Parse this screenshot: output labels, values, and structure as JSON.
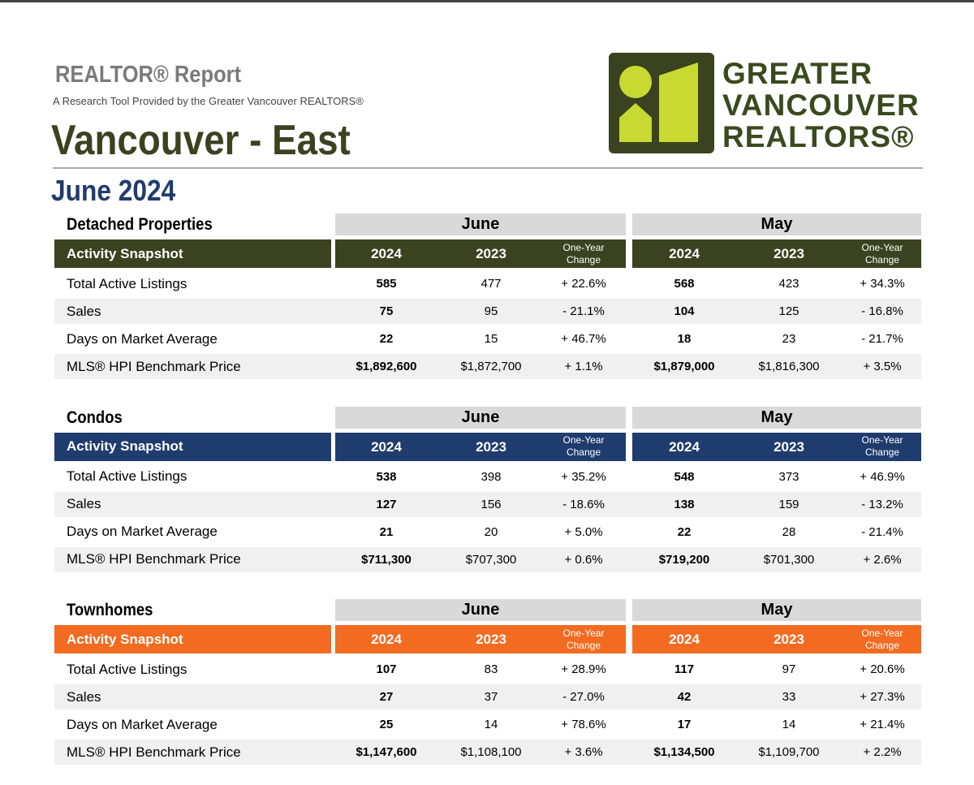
{
  "header": {
    "report_title": "REALTOR® Report",
    "subtitle": "A Research Tool Provided by the Greater Vancouver REALTORS®",
    "area": "Vancouver - East",
    "period": "June 2024",
    "logo_text": [
      "GREATER",
      "VANCOUVER",
      "REALTORS®"
    ]
  },
  "sections": [
    {
      "title": "Detached Properties",
      "snapshot": "Activity Snapshot",
      "color": "#3a4220",
      "groups": [
        {
          "name": "June",
          "columns": [
            "2024",
            "2023",
            "One-Year Change"
          ]
        },
        {
          "name": "May",
          "columns": [
            "2024",
            "2023",
            "One-Year Change"
          ]
        }
      ],
      "rows": [
        {
          "label": "Total Active Listings",
          "cells": [
            "585",
            "477",
            "+ 22.6%",
            "568",
            "423",
            "+ 34.3%"
          ]
        },
        {
          "label": "Sales",
          "cells": [
            "75",
            "95",
            "- 21.1%",
            "104",
            "125",
            "- 16.8%"
          ]
        },
        {
          "label": "Days on Market Average",
          "cells": [
            "22",
            "15",
            "+ 46.7%",
            "18",
            "23",
            "- 21.7%"
          ]
        },
        {
          "label": "MLS® HPI Benchmark Price",
          "cells": [
            "$1,892,600",
            "$1,872,700",
            "+ 1.1%",
            "$1,879,000",
            "$1,816,300",
            "+ 3.5%"
          ]
        }
      ]
    },
    {
      "title": "Condos",
      "snapshot": "Activity Snapshot",
      "color": "#1f3c6e",
      "groups": [
        {
          "name": "June",
          "columns": [
            "2024",
            "2023",
            "One-Year Change"
          ]
        },
        {
          "name": "May",
          "columns": [
            "2024",
            "2023",
            "One-Year Change"
          ]
        }
      ],
      "rows": [
        {
          "label": "Total Active Listings",
          "cells": [
            "538",
            "398",
            "+ 35.2%",
            "548",
            "373",
            "+ 46.9%"
          ]
        },
        {
          "label": "Sales",
          "cells": [
            "127",
            "156",
            "- 18.6%",
            "138",
            "159",
            "- 13.2%"
          ]
        },
        {
          "label": "Days on Market Average",
          "cells": [
            "21",
            "20",
            "+ 5.0%",
            "22",
            "28",
            "- 21.4%"
          ]
        },
        {
          "label": "MLS® HPI Benchmark Price",
          "cells": [
            "$711,300",
            "$707,300",
            "+ 0.6%",
            "$719,200",
            "$701,300",
            "+ 2.6%"
          ]
        }
      ]
    },
    {
      "title": "Townhomes",
      "snapshot": "Activity Snapshot",
      "color": "#f26b21",
      "groups": [
        {
          "name": "June",
          "columns": [
            "2024",
            "2023",
            "One-Year Change"
          ]
        },
        {
          "name": "May",
          "columns": [
            "2024",
            "2023",
            "One-Year Change"
          ]
        }
      ],
      "rows": [
        {
          "label": "Total Active Listings",
          "cells": [
            "107",
            "83",
            "+ 28.9%",
            "117",
            "97",
            "+ 20.6%"
          ]
        },
        {
          "label": "Sales",
          "cells": [
            "27",
            "37",
            "- 27.0%",
            "42",
            "33",
            "+ 27.3%"
          ]
        },
        {
          "label": "Days on Market Average",
          "cells": [
            "25",
            "14",
            "+ 78.6%",
            "17",
            "14",
            "+ 21.4%"
          ]
        },
        {
          "label": "MLS® HPI Benchmark Price",
          "cells": [
            "$1,147,600",
            "$1,108,100",
            "+ 3.6%",
            "$1,134,500",
            "$1,109,700",
            "+ 2.2%"
          ]
        }
      ]
    }
  ]
}
